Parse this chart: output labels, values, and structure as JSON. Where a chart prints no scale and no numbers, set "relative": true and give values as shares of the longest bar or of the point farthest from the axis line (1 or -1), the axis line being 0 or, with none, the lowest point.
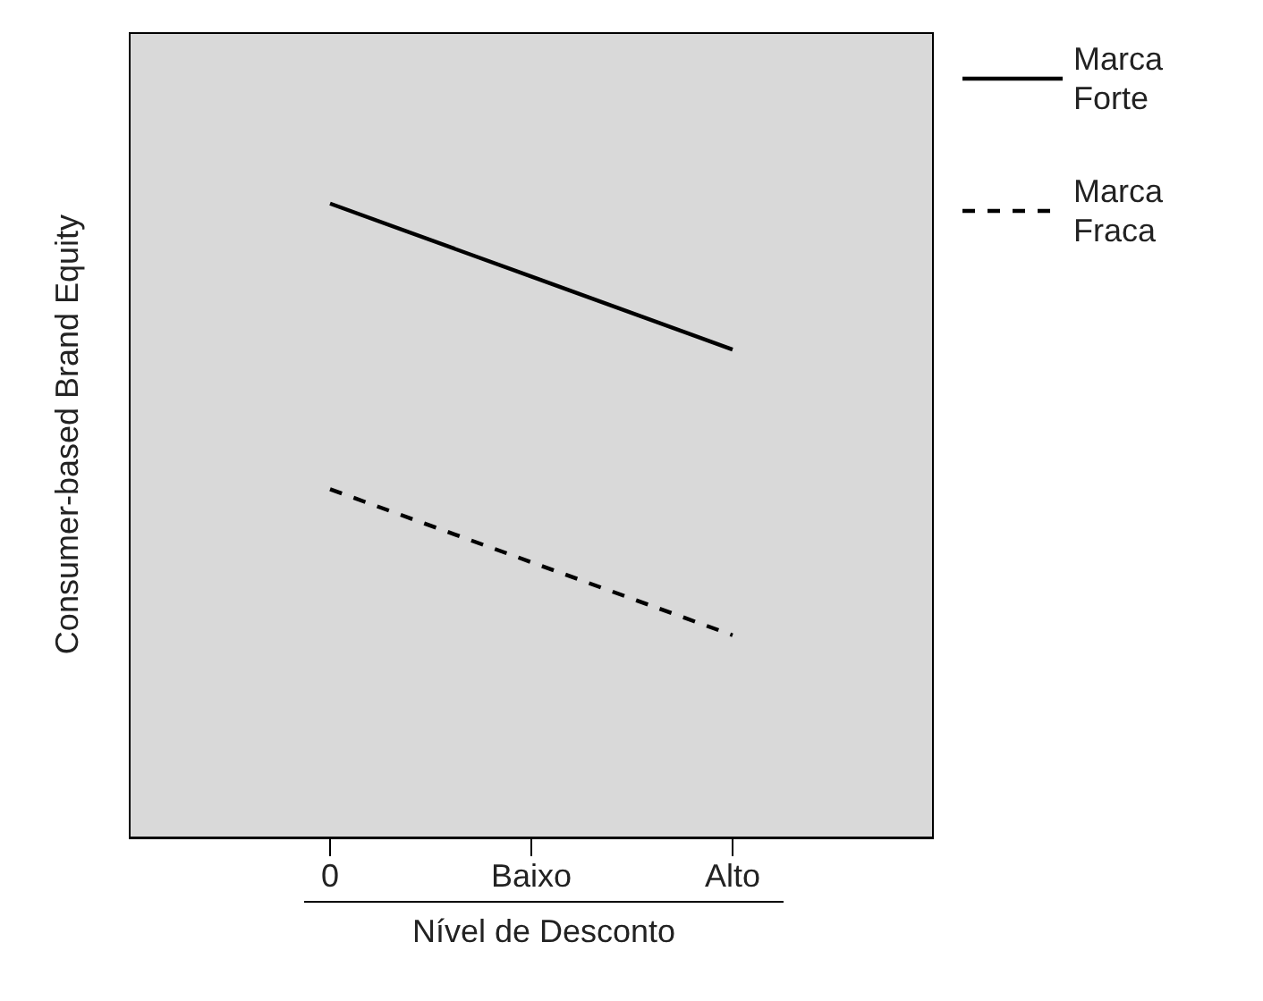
{
  "chart_data": {
    "type": "line",
    "relative": true,
    "ylabel": "Consumer-based Brand Equity",
    "xlabel": "Nível de Desconto",
    "categories": [
      "0",
      "Baixo",
      "Alto"
    ],
    "legend": "right",
    "marker": "none",
    "series": [
      {
        "name": "Marca Forte",
        "color": "#000000",
        "line_style": "solid",
        "values": [
          1,
          0.885,
          0.77
        ]
      },
      {
        "name": "Marca Fraca",
        "color": "#000000",
        "line_style": "dashed",
        "values": [
          0.55,
          0.435,
          0.32
        ]
      }
    ]
  }
}
